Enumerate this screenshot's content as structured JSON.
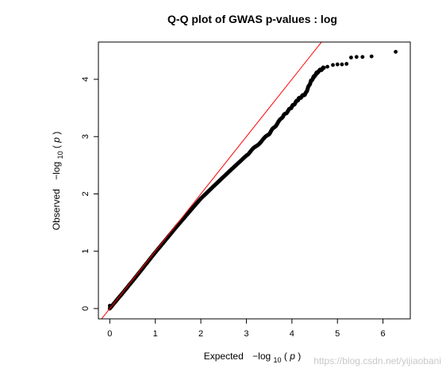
{
  "chart_data": {
    "type": "scatter",
    "title": "Q-Q plot of GWAS p-values : log",
    "xlabel": {
      "prefix": "Expected",
      "expr_minus": "−log",
      "expr_sub": "10",
      "expr_open": "(",
      "expr_var": "p",
      "expr_close": ")"
    },
    "ylabel": {
      "prefix": "Observed",
      "expr_minus": "−log",
      "expr_sub": "10",
      "expr_open": "(",
      "expr_var": "p",
      "expr_close": ")"
    },
    "xlim": [
      -0.25,
      6.6
    ],
    "ylim": [
      -0.18,
      4.65
    ],
    "xticks": [
      "0",
      "1",
      "2",
      "3",
      "4",
      "5",
      "6"
    ],
    "yticks": [
      "0",
      "1",
      "2",
      "3",
      "4"
    ],
    "reference_line": {
      "slope": 1,
      "intercept": 0,
      "color": "#ff0000"
    },
    "point_color": "#000000",
    "observed_curve": [
      [
        0.0,
        0.0
      ],
      [
        0.5,
        0.48
      ],
      [
        1.0,
        0.98
      ],
      [
        1.5,
        1.46
      ],
      [
        2.0,
        1.92
      ],
      [
        2.5,
        2.3
      ],
      [
        3.0,
        2.67
      ],
      [
        3.5,
        3.05
      ],
      [
        3.8,
        3.35
      ],
      [
        4.0,
        3.52
      ],
      [
        4.15,
        3.66
      ],
      [
        4.3,
        3.75
      ],
      [
        4.42,
        3.97
      ],
      [
        4.55,
        4.12
      ],
      [
        4.7,
        4.2
      ]
    ],
    "tail_points": [
      [
        0.0,
        0.05
      ],
      [
        4.42,
        3.97
      ],
      [
        4.48,
        4.03
      ],
      [
        4.55,
        4.1
      ],
      [
        4.62,
        4.17
      ],
      [
        4.7,
        4.2
      ],
      [
        4.78,
        4.22
      ],
      [
        4.9,
        4.25
      ],
      [
        5.0,
        4.26
      ],
      [
        5.1,
        4.26
      ],
      [
        5.2,
        4.27
      ],
      [
        5.3,
        4.38
      ],
      [
        5.42,
        4.39
      ],
      [
        5.55,
        4.39
      ],
      [
        5.75,
        4.4
      ],
      [
        6.28,
        4.48
      ]
    ]
  },
  "watermark": "https://blog.csdn.net/yijiaobani"
}
